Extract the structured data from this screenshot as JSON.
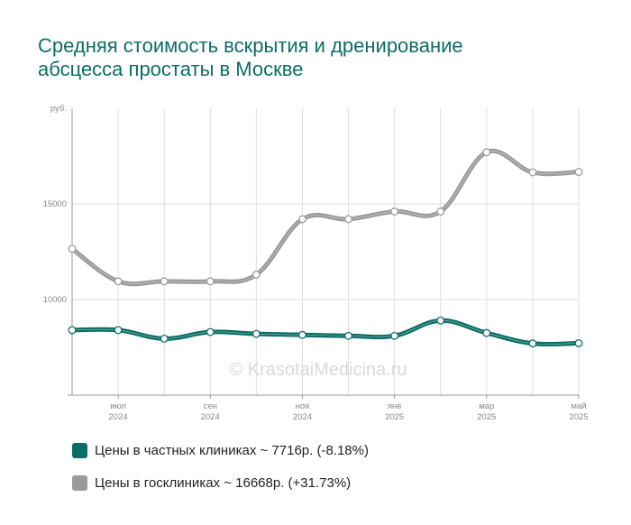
{
  "title_lines": [
    "Средняя стоимость вскрытия и дренирование",
    "абсцесса простаты в Москве"
  ],
  "watermark": "© KrasotaiMedicina.ru",
  "colors": {
    "private": "#0b6e66",
    "public": "#9a9a9a",
    "title": "#0b6e66"
  },
  "legend": [
    {
      "label": "Цены в частных клиниках ~ 7716р. (-8.18%)",
      "color": "#0b6e66"
    },
    {
      "label": "Цены в госклиниках ~ 16668р. (+31.73%)",
      "color": "#9a9a9a"
    }
  ],
  "chart_data": {
    "type": "line",
    "ylabel": "руб.",
    "ylim": [
      5000,
      20000
    ],
    "yticks": [
      10000,
      15000
    ],
    "x": [
      "2024-06",
      "2024-07",
      "2024-08",
      "2024-09",
      "2024-10",
      "2024-11",
      "2024-12",
      "2025-01",
      "2025-02",
      "2025-03",
      "2025-04",
      "2025-05"
    ],
    "xtick_labels": [
      {
        "index": 1,
        "month": "июл",
        "year": "2024"
      },
      {
        "index": 3,
        "month": "сен",
        "year": "2024"
      },
      {
        "index": 5,
        "month": "ноя",
        "year": "2024"
      },
      {
        "index": 7,
        "month": "янв",
        "year": "2025"
      },
      {
        "index": 9,
        "month": "мар",
        "year": "2025"
      },
      {
        "index": 11,
        "month": "май",
        "year": "2025"
      }
    ],
    "grid": true,
    "series": [
      {
        "name": "Цены в частных клиниках",
        "color": "#0b6e66",
        "values": [
          8400,
          8400,
          7950,
          8300,
          8200,
          8150,
          8100,
          8100,
          8900,
          8250,
          7700,
          7716
        ]
      },
      {
        "name": "Цены в госклиниках",
        "color": "#9a9a9a",
        "values": [
          12650,
          10950,
          10950,
          10950,
          11300,
          14200,
          14200,
          14600,
          14600,
          17700,
          16650,
          16668
        ]
      }
    ]
  }
}
